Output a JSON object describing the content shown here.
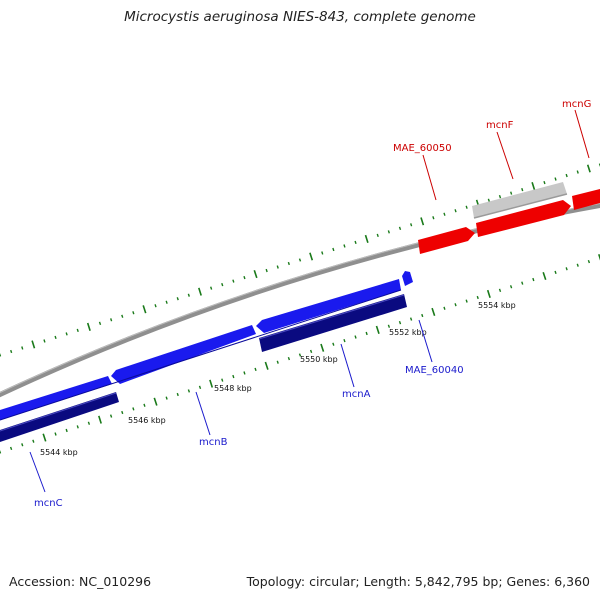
{
  "header": {
    "title": "Microcystis aeruginosa NIES-843, complete genome"
  },
  "footer": {
    "accession": "Accession: NC_010296",
    "stats": "Topology: circular; Length: 5,842,795 bp; Genes: 6,360"
  },
  "colors": {
    "forward_gene": "#ee0000",
    "forward_gene_alt": "#c8c8c8",
    "reverse_gene": "#1a1aee",
    "reverse_cds": "#0a0a80",
    "backbone": "#8a8a8a",
    "tick_mark": "#1a7a1a",
    "forward_label": "#cc0000",
    "reverse_label": "#1a1acc"
  },
  "kbp_labels": [
    "5544 kbp",
    "5546 kbp",
    "5548 kbp",
    "5550 kbp",
    "5552 kbp",
    "5554 kbp"
  ],
  "genes": {
    "forward": [
      "MAE_60050",
      "mcnF",
      "mcnG"
    ],
    "reverse": [
      "mcnC",
      "mcnB",
      "mcnA",
      "MAE_60040"
    ]
  }
}
